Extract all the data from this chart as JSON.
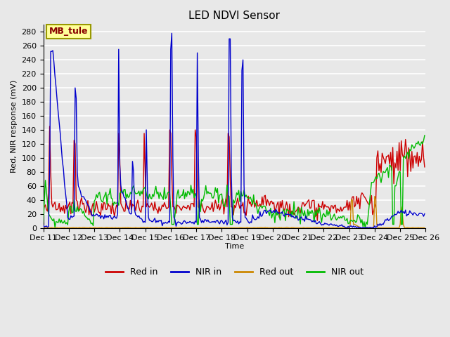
{
  "title": "LED NDVI Sensor",
  "ylabel": "Red, NIR response (mV)",
  "xlabel": "Time",
  "ylim": [
    0,
    290
  ],
  "xlim": [
    0,
    360
  ],
  "plot_bg": "#e8e8e8",
  "fig_bg": "#e8e8e8",
  "grid_color": "#ffffff",
  "annotation_text": "MB_tule",
  "annotation_bgcolor": "#ffff99",
  "annotation_edgecolor": "#999900",
  "yticks": [
    0,
    20,
    40,
    60,
    80,
    100,
    120,
    140,
    160,
    180,
    200,
    220,
    240,
    260,
    280
  ],
  "xtick_labels": [
    "Dec 11",
    "Dec 12",
    "Dec 13",
    "Dec 14",
    "Dec 15",
    "Dec 16",
    "Dec 17",
    "Dec 18",
    "Dec 19",
    "Dec 20",
    "Dec 21",
    "Dec 22",
    "Dec 23",
    "Dec 24",
    "Dec 25",
    "Dec 26"
  ],
  "xtick_positions": [
    0,
    24,
    48,
    72,
    96,
    120,
    144,
    168,
    192,
    216,
    240,
    264,
    288,
    312,
    336,
    360
  ],
  "legend_entries": [
    "Red in",
    "NIR in",
    "Red out",
    "NIR out"
  ],
  "line_colors": [
    "#cc0000",
    "#0000cc",
    "#cc8800",
    "#00bb00"
  ],
  "line_width": 1.0,
  "title_fontsize": 11,
  "label_fontsize": 8,
  "legend_fontsize": 9
}
